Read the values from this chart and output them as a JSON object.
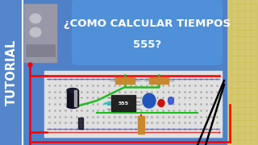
{
  "bg_color": "#5080c8",
  "tutorial_bar_color": "#5080c8",
  "tutorial_text": "TUTORIAL",
  "tutorial_text_color": "#ffffff",
  "bubble_color": "#5090d8",
  "bubble_text_line1": "¿COMO CALCULAR TIEMPOS",
  "bubble_text_line2": "555?",
  "bubble_text_color": "#ffffff",
  "right_panel_color": "#d4c870",
  "right_panel_border": "#c8a800",
  "figure_bg": "#5080c8",
  "bb_bg": "#e0e0e0",
  "bb_border": "#b0b0b0",
  "bb_dot_color": "#aaaaaa",
  "bb_rail_red": "#dd2222",
  "bb_rail_blue": "#2222dd",
  "left_gray_panel": "#9090a0",
  "left_gray_border": "#707080"
}
